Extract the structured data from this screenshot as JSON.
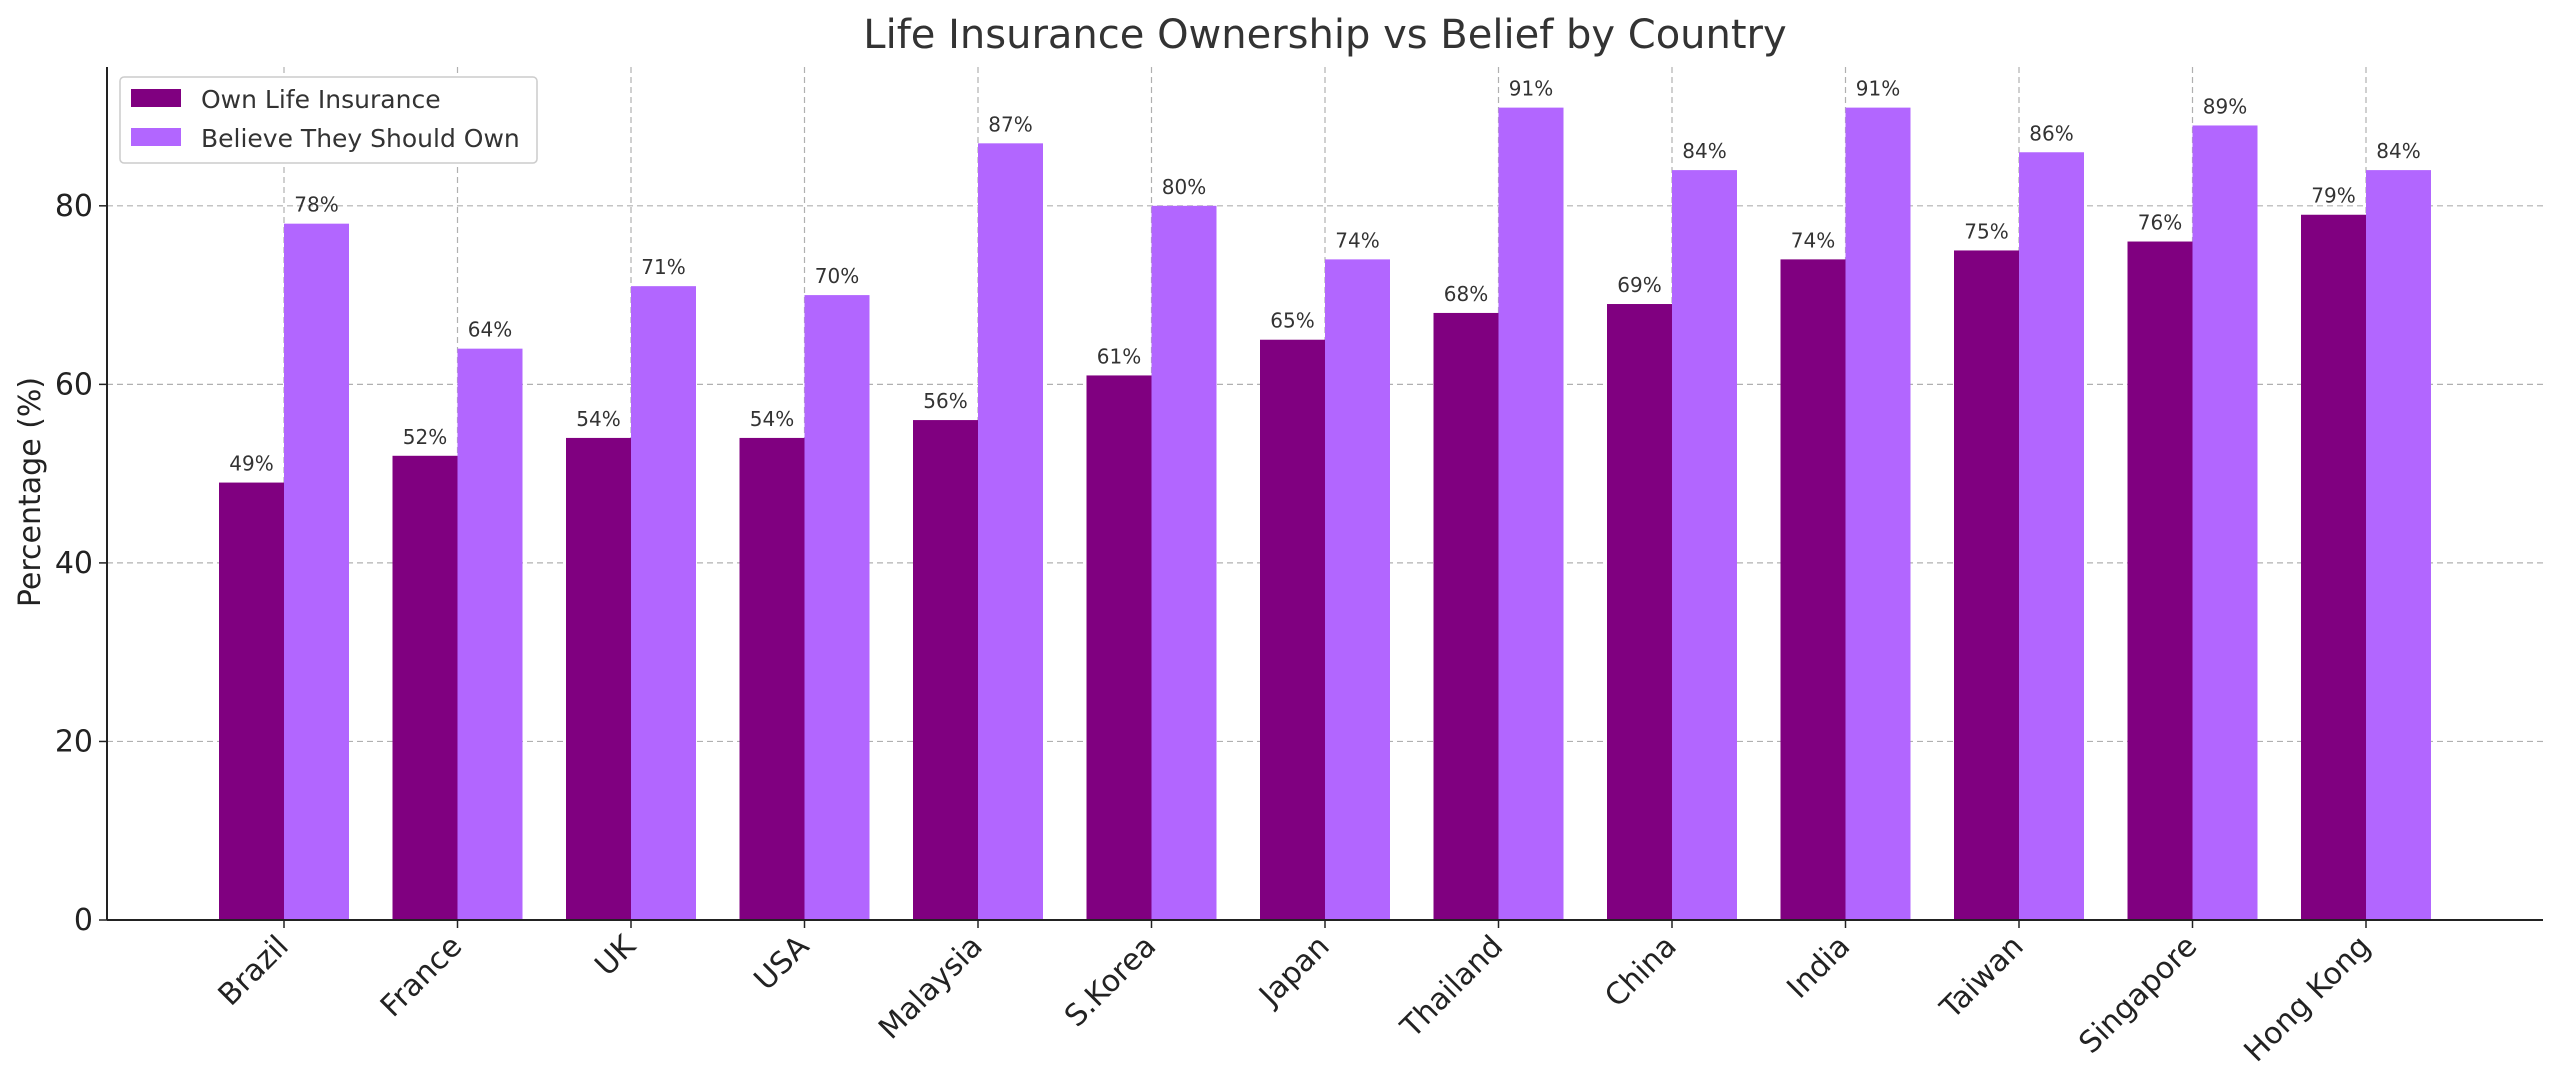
{
  "chart_data": {
    "type": "bar",
    "title": "Life Insurance Ownership vs Belief by Country",
    "xlabel": "",
    "ylabel": "Percentage (%)",
    "ylim": [
      0,
      95.55
    ],
    "yticks": [
      "0",
      "20",
      "40",
      "60",
      "80"
    ],
    "grid": true,
    "legend_placement": "top-left",
    "categories": [
      "Brazil",
      "France",
      "UK",
      "USA",
      "Malaysia",
      "S.Korea",
      "Japan",
      "Thailand",
      "China",
      "India",
      "Taiwan",
      "Singapore",
      "Hong Kong"
    ],
    "series": [
      {
        "name": "Own Life Insurance",
        "color": "#800080",
        "values": [
          49,
          52,
          54,
          54,
          56,
          61,
          65,
          68,
          69,
          74,
          75,
          76,
          79
        ],
        "labels": [
          "49%",
          "52%",
          "54%",
          "54%",
          "56%",
          "61%",
          "65%",
          "68%",
          "69%",
          "74%",
          "75%",
          "76%",
          "79%"
        ]
      },
      {
        "name": "Believe They Should Own",
        "color": "#b266ff",
        "values": [
          78,
          64,
          71,
          70,
          87,
          80,
          74,
          91,
          84,
          91,
          86,
          89,
          84
        ],
        "labels": [
          "78%",
          "64%",
          "71%",
          "70%",
          "87%",
          "80%",
          "74%",
          "91%",
          "84%",
          "91%",
          "86%",
          "89%",
          "84%"
        ]
      }
    ]
  }
}
